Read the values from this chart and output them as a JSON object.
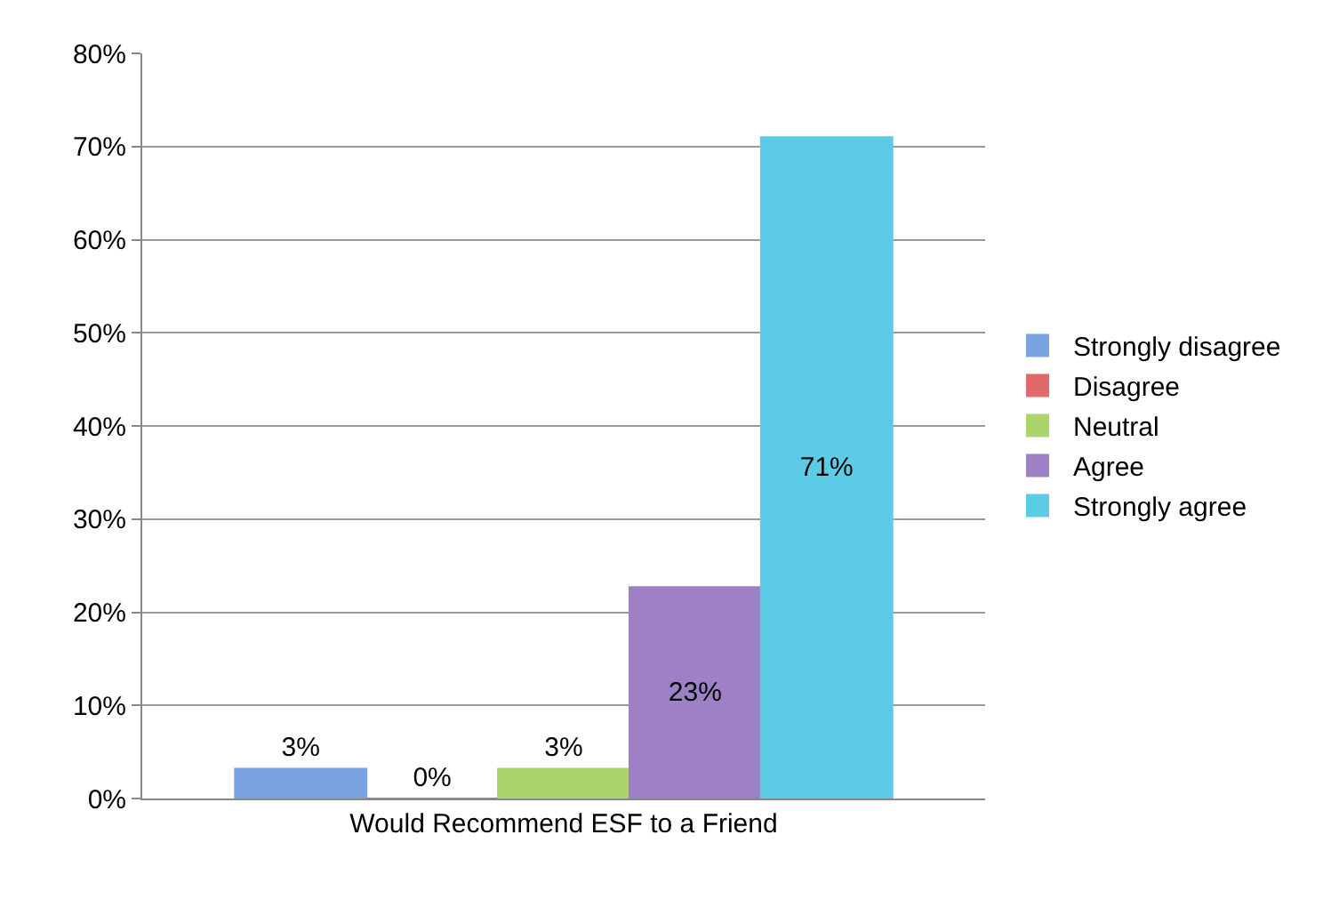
{
  "chart_data": {
    "type": "bar",
    "categories": [
      "Would Recommend ESF to a Friend"
    ],
    "series": [
      {
        "name": "Strongly disagree",
        "color": "#78a2e0",
        "values": [
          3.2
        ],
        "value_labels": [
          "3%"
        ]
      },
      {
        "name": "Disagree",
        "color": "#e06a6a",
        "values": [
          0
        ],
        "value_labels": [
          "0%"
        ]
      },
      {
        "name": "Neutral",
        "color": "#a9d56c",
        "values": [
          3.2
        ],
        "value_labels": [
          "3%"
        ]
      },
      {
        "name": "Agree",
        "color": "#9d80c6",
        "values": [
          22.7
        ],
        "value_labels": [
          "23%"
        ]
      },
      {
        "name": "Strongly agree",
        "color": "#5ccbe6",
        "values": [
          71
        ],
        "value_labels": [
          "71%"
        ]
      }
    ],
    "ylim": [
      0,
      80
    ],
    "yticks": [
      {
        "value": 0,
        "label": "0%"
      },
      {
        "value": 10,
        "label": "10%"
      },
      {
        "value": 20,
        "label": "20%"
      },
      {
        "value": 30,
        "label": "30%"
      },
      {
        "value": 40,
        "label": "40%"
      },
      {
        "value": 50,
        "label": "50%"
      },
      {
        "value": 60,
        "label": "60%"
      },
      {
        "value": 70,
        "label": "70%"
      },
      {
        "value": 80,
        "label": "80%"
      }
    ],
    "grid": "y",
    "legend": "right"
  }
}
